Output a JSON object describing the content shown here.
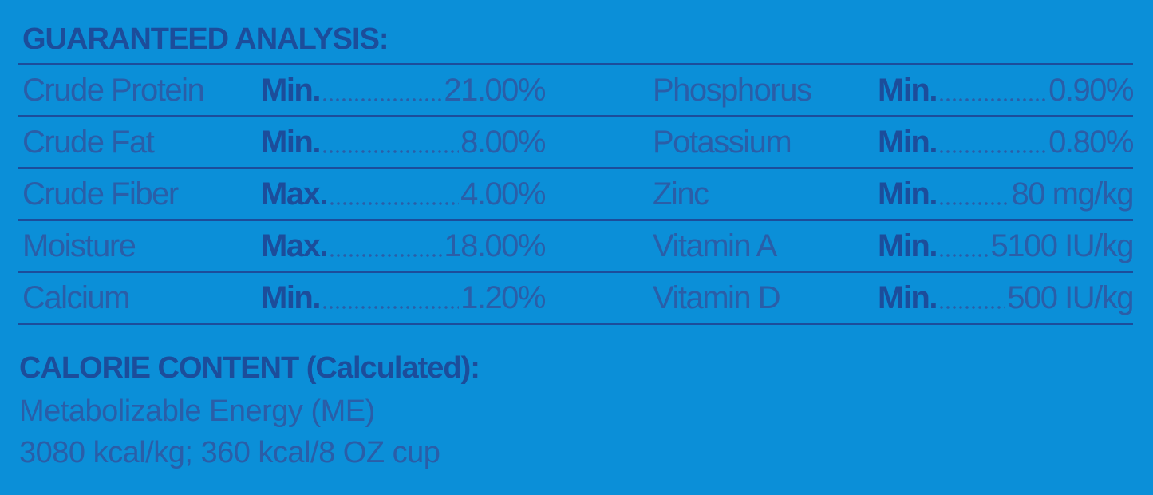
{
  "title": "GUARANTEED ANALYSIS:",
  "analysis": {
    "rows": [
      [
        {
          "name": "Crude Protein",
          "qualifier": "Min.",
          "value": "21.00%"
        },
        {
          "name": "Phosphorus",
          "qualifier": "Min.",
          "value": "0.90%"
        }
      ],
      [
        {
          "name": "Crude Fat",
          "qualifier": "Min.",
          "value": "8.00%"
        },
        {
          "name": "Potassium",
          "qualifier": "Min.",
          "value": "0.80%"
        }
      ],
      [
        {
          "name": "Crude Fiber",
          "qualifier": "Max.",
          "value": "4.00%"
        },
        {
          "name": "Zinc",
          "qualifier": "Min.",
          "value": "80 mg/kg"
        }
      ],
      [
        {
          "name": "Moisture",
          "qualifier": "Max.",
          "value": "18.00%"
        },
        {
          "name": "Vitamin A",
          "qualifier": "Min.",
          "value": "5100 IU/kg"
        }
      ],
      [
        {
          "name": "Calcium",
          "qualifier": "Min.",
          "value": "1.20%"
        },
        {
          "name": "Vitamin D",
          "qualifier": "Min.",
          "value": "500 IU/kg"
        }
      ]
    ]
  },
  "calorie": {
    "title": "CALORIE CONTENT (Calculated):",
    "lines": [
      "Metabolizable Energy (ME)",
      "3080 kcal/kg; 360 kcal/8 OZ cup"
    ]
  }
}
